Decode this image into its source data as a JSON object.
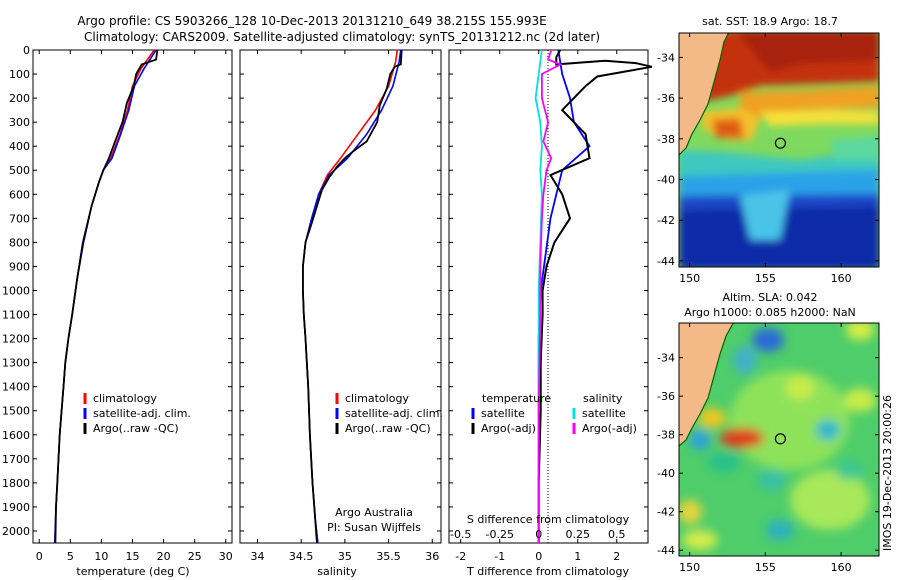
{
  "title_line1": "Argo profile: CS 5903266_128 10-Dec-2013 20131210_649 38.215S 155.993E",
  "title_line2": "Climatology: CARS2009. Satellite-adjusted climatology: synTS_20131212.nc (2d later)",
  "side_caption": "IMOS 19-Dec-2013 20:00:26",
  "colors": {
    "climatology": "#ff0000",
    "satellite": "#0000ff",
    "argo": "#000000",
    "sal_satellite": "#00e0e0",
    "sal_argo": "#ff00ff"
  },
  "chart_data": [
    {
      "id": "temperature",
      "type": "line",
      "xlabel": "temperature (deg C)",
      "xlim": [
        -1,
        31
      ],
      "ylim": [
        0,
        2050
      ],
      "y_reversed": true,
      "xticks": [
        0,
        5,
        10,
        15,
        20,
        25,
        30
      ],
      "yticks": [
        0,
        100,
        200,
        300,
        400,
        500,
        600,
        700,
        800,
        900,
        1000,
        1100,
        1200,
        1300,
        1400,
        1500,
        1600,
        1700,
        1800,
        1900,
        2000
      ],
      "legend": [
        "climatology",
        "satellite-adj. clim.",
        "Argo(..raw -QC)"
      ],
      "series": [
        {
          "name": "climatology",
          "color": "climatology",
          "x": [
            18.5,
            16.3,
            15.0,
            14.2,
            13.0,
            11.5,
            10.3,
            9.6,
            8.4,
            7.0,
            6.1,
            5.3,
            4.7,
            4.2,
            3.9,
            3.6,
            3.3,
            3.1,
            2.9,
            2.7,
            2.5
          ],
          "y": [
            0,
            80,
            150,
            250,
            350,
            450,
            500,
            550,
            650,
            800,
            950,
            1100,
            1200,
            1300,
            1400,
            1500,
            1600,
            1700,
            1800,
            1900,
            2050
          ]
        },
        {
          "name": "satellite-adj. clim.",
          "color": "satellite",
          "x": [
            18.8,
            16.8,
            15.3,
            14.4,
            13.1,
            11.7,
            10.3,
            9.6,
            8.4,
            7.0,
            6.1,
            5.3,
            4.7,
            4.2,
            3.9,
            3.6,
            3.3,
            3.1,
            2.9,
            2.7,
            2.5
          ],
          "y": [
            0,
            80,
            150,
            250,
            350,
            450,
            500,
            550,
            650,
            800,
            950,
            1100,
            1200,
            1300,
            1400,
            1500,
            1600,
            1700,
            1800,
            1900,
            2050
          ]
        },
        {
          "name": "Argo(..raw -QC)",
          "color": "argo",
          "x": [
            19.0,
            18.8,
            16.5,
            15.6,
            15.2,
            14.1,
            13.4,
            12.2,
            11.2,
            10.3,
            9.6,
            8.4,
            7.1,
            6.1,
            5.3,
            4.7,
            4.2,
            3.9,
            3.6,
            3.3,
            3.1,
            2.9,
            2.7,
            2.6
          ],
          "y": [
            0,
            40,
            60,
            100,
            150,
            220,
            300,
            380,
            450,
            500,
            550,
            650,
            800,
            950,
            1100,
            1200,
            1300,
            1400,
            1500,
            1600,
            1700,
            1800,
            1900,
            2050
          ]
        }
      ]
    },
    {
      "id": "salinity",
      "type": "line",
      "xlabel": "salinity",
      "xlim": [
        33.8,
        36.1
      ],
      "ylim": [
        0,
        2050
      ],
      "y_reversed": true,
      "xticks": [
        34,
        34.5,
        35,
        35.5,
        36
      ],
      "legend": [
        "climatology",
        "satellite-adj. clim.",
        "Argo(..raw -QC)"
      ],
      "annotation": [
        "Argo Australia",
        "PI: Susan Wijffels"
      ],
      "series": [
        {
          "name": "climatology",
          "color": "climatology",
          "x": [
            35.6,
            35.58,
            35.5,
            35.35,
            35.15,
            34.95,
            34.8,
            34.7,
            34.62,
            34.55,
            34.52,
            34.52,
            34.53,
            34.55,
            34.58,
            34.6,
            34.63,
            34.66,
            34.69
          ],
          "y": [
            0,
            50,
            150,
            250,
            350,
            450,
            520,
            600,
            700,
            800,
            900,
            1000,
            1100,
            1200,
            1400,
            1600,
            1800,
            1950,
            2050
          ]
        },
        {
          "name": "satellite-adj. clim.",
          "color": "satellite",
          "x": [
            35.64,
            35.62,
            35.55,
            35.42,
            35.25,
            35.03,
            34.82,
            34.7,
            34.62,
            34.55,
            34.52,
            34.52,
            34.53,
            34.55,
            34.58,
            34.6,
            34.63,
            34.66,
            34.69
          ],
          "y": [
            0,
            50,
            150,
            250,
            350,
            450,
            520,
            600,
            700,
            800,
            900,
            1000,
            1100,
            1200,
            1400,
            1600,
            1800,
            1950,
            2050
          ]
        },
        {
          "name": "Argo(..raw -QC)",
          "color": "argo",
          "x": [
            35.65,
            35.64,
            35.57,
            35.52,
            35.48,
            35.4,
            35.37,
            35.25,
            35.1,
            35.0,
            34.92,
            34.82,
            34.74,
            34.68,
            34.62,
            34.55,
            34.52,
            34.52,
            34.53,
            34.55,
            34.58,
            34.6,
            34.63,
            34.66,
            34.68
          ],
          "y": [
            0,
            60,
            70,
            100,
            160,
            230,
            300,
            380,
            420,
            450,
            480,
            530,
            580,
            650,
            720,
            800,
            900,
            1000,
            1100,
            1200,
            1400,
            1600,
            1800,
            1950,
            2050
          ]
        }
      ]
    },
    {
      "id": "difference",
      "type": "line",
      "xlabel": "T difference from climatology",
      "xlabel_top": "S difference from climatology",
      "xlim": [
        -2.3,
        2.8
      ],
      "xticks": [
        -2,
        -1,
        0,
        1,
        2
      ],
      "xticks_s_values": [
        -0.5,
        -0.25,
        0,
        0.25,
        0.5
      ],
      "xticks_s_labels": [
        "-0.5",
        "-0.25",
        "0",
        "0.25",
        "0.5"
      ],
      "ylim": [
        0,
        2050
      ],
      "y_reversed": true,
      "legend_left_title": "temperature",
      "legend_right_title": "salinity",
      "legend_left": [
        "satellite",
        "Argo(-adj)"
      ],
      "legend_right": [
        "satellite",
        "Argo(-adj)"
      ],
      "series": [
        {
          "name": "temperature satellite",
          "color": "satellite",
          "x": [
            0.5,
            0.6,
            0.8,
            0.9,
            1.3,
            0.6,
            0.3,
            0.05,
            0,
            0,
            0,
            0,
            0,
            0
          ],
          "y": [
            0,
            100,
            200,
            300,
            400,
            500,
            700,
            1000,
            1200,
            1400,
            1600,
            1800,
            1950,
            2050
          ]
        },
        {
          "name": "temperature Argo(-adj)",
          "color": "argo",
          "x": [
            0.55,
            0.45,
            0.45,
            1.7,
            2.5,
            2.9,
            2.2,
            1.5,
            1.2,
            0.9,
            0.6,
            1.2,
            1.3,
            0.3,
            0.6,
            0.8,
            0.4,
            0.2,
            0.1,
            0.1,
            0.05,
            0.05,
            0,
            0
          ],
          "y": [
            0,
            30,
            60,
            45,
            55,
            70,
            90,
            110,
            150,
            200,
            250,
            350,
            450,
            520,
            600,
            700,
            800,
            900,
            1000,
            1100,
            1300,
            1500,
            1800,
            2050
          ]
        },
        {
          "name": "salinity satellite",
          "color": "sal_satellite",
          "x": [
            0.02,
            0,
            -0.02,
            0.01,
            0.02,
            0.01,
            0.02,
            0.01,
            0,
            0,
            0,
            0
          ],
          "y": [
            0,
            100,
            200,
            300,
            400,
            500,
            600,
            800,
            1000,
            1300,
            1600,
            2050
          ]
        },
        {
          "name": "salinity Argo(-adj)",
          "color": "sal_argo",
          "x": [
            0.08,
            0.06,
            0.14,
            0.02,
            0.02,
            0.06,
            0.03,
            0.08,
            0.05,
            0.03,
            0.02,
            0.01,
            0.01,
            0,
            0
          ],
          "y": [
            0,
            40,
            60,
            100,
            200,
            300,
            380,
            450,
            500,
            600,
            700,
            900,
            1100,
            1500,
            2050
          ]
        }
      ]
    },
    {
      "id": "sst_map",
      "type": "heatmap",
      "title": "sat. SST: 18.9 Argo: 18.7",
      "xlim": [
        149.3,
        162.5
      ],
      "ylim": [
        -44.3,
        -32.8
      ],
      "xticks": [
        150,
        155,
        160
      ],
      "yticks": [
        -34,
        -36,
        -38,
        -40,
        -42,
        -44
      ],
      "ytick_labels": [
        "-34",
        "-36",
        "-38",
        "-40",
        "-42",
        "-44"
      ],
      "marker": {
        "lon": 155.993,
        "lat": -38.215
      }
    },
    {
      "id": "sla_map",
      "type": "heatmap",
      "title_line1": "Altim. SLA: 0.042",
      "title_line2": "Argo h1000: 0.085 h2000: NaN",
      "xlim": [
        149.3,
        162.5
      ],
      "ylim": [
        -44.3,
        -32.2
      ],
      "xticks": [
        150,
        155,
        160
      ],
      "yticks": [
        -34,
        -36,
        -38,
        -40,
        -42,
        -44
      ],
      "ytick_labels": [
        "-34",
        "-36",
        "-38",
        "-40",
        "-42",
        "-44"
      ],
      "marker": {
        "lon": 155.993,
        "lat": -38.215
      }
    }
  ]
}
